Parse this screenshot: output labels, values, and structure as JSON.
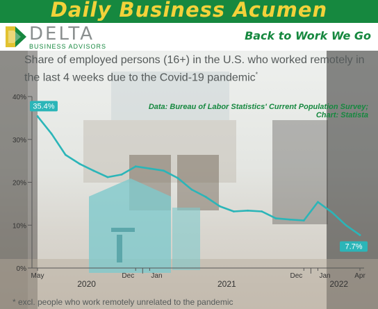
{
  "header": {
    "banner_title": "Daily Business Acumen",
    "logo_name": "DELTA",
    "logo_sub": "BUSINESS ADVISORS",
    "tagline": "Back to Work We Go"
  },
  "colors": {
    "brand_green": "#16883f",
    "banner_gold": "#f2d23a",
    "line": "#2bb5b8",
    "text_gray": "#555a5a"
  },
  "chart_data": {
    "type": "line",
    "title": "Share of employed persons (16+) in the U.S. who worked remotely in the last 4 weeks due to the Covid-19 pandemic",
    "title_mark": "*",
    "source": "Data: Bureau of Labor Statistics' Current Population Survey; Chart: Statista",
    "footnote": "* excl. people who work remotely unrelated to the pandemic",
    "y_ticks": [
      "0%",
      "10%",
      "20%",
      "30%",
      "40%"
    ],
    "ylim": [
      0,
      40
    ],
    "x_tick_labels": [
      "May",
      "Dec",
      "Jan",
      "Dec",
      "Jan",
      "Apr"
    ],
    "year_labels": [
      "2020",
      "2021",
      "2022"
    ],
    "x": [
      "2020-05",
      "2020-06",
      "2020-07",
      "2020-08",
      "2020-09",
      "2020-10",
      "2020-11",
      "2020-12",
      "2021-01",
      "2021-02",
      "2021-03",
      "2021-04",
      "2021-05",
      "2021-06",
      "2021-07",
      "2021-08",
      "2021-09",
      "2021-10",
      "2021-11",
      "2021-12",
      "2022-01",
      "2022-02",
      "2022-03",
      "2022-04"
    ],
    "series": [
      {
        "values": [
          35.4,
          31.3,
          26.4,
          24.3,
          22.7,
          21.2,
          21.8,
          23.7,
          23.2,
          22.7,
          21.0,
          18.3,
          16.6,
          14.4,
          13.2,
          13.4,
          13.2,
          11.6,
          11.3,
          11.1,
          15.4,
          13.0,
          10.0,
          7.7
        ]
      }
    ],
    "data_labels": [
      "35.4%",
      "7.7%"
    ]
  }
}
